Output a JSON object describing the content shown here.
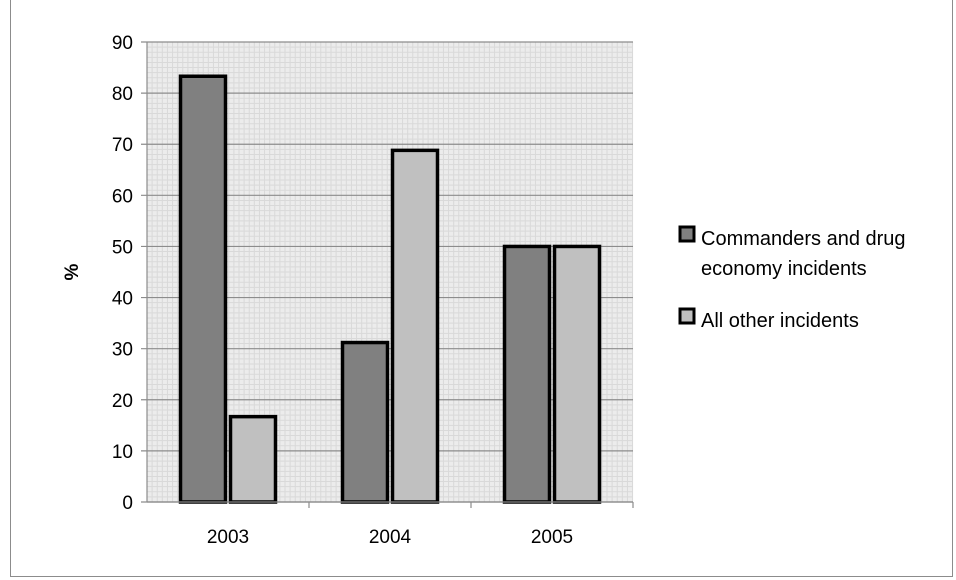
{
  "chart_data": {
    "type": "bar",
    "title": "",
    "xlabel": "",
    "ylabel": "%",
    "categories": [
      "2003",
      "2004",
      "2005"
    ],
    "series": [
      {
        "name": "Commanders and drug economy incidents",
        "values": [
          83.3,
          31.2,
          50
        ],
        "color": "#808080"
      },
      {
        "name": "All other incidents",
        "values": [
          16.7,
          68.8,
          50
        ],
        "color": "#c0c0c0"
      }
    ],
    "ylim": [
      0,
      90
    ],
    "yticks": [
      0,
      10,
      20,
      30,
      40,
      50,
      60,
      70,
      80,
      90
    ],
    "grid": true,
    "legend_position": "right",
    "legend_lines": [
      [
        "Commanders and drug",
        "economy incidents"
      ],
      [
        "All other incidents"
      ]
    ],
    "plot_background": "#ececec",
    "bar_outline": "#000000"
  }
}
